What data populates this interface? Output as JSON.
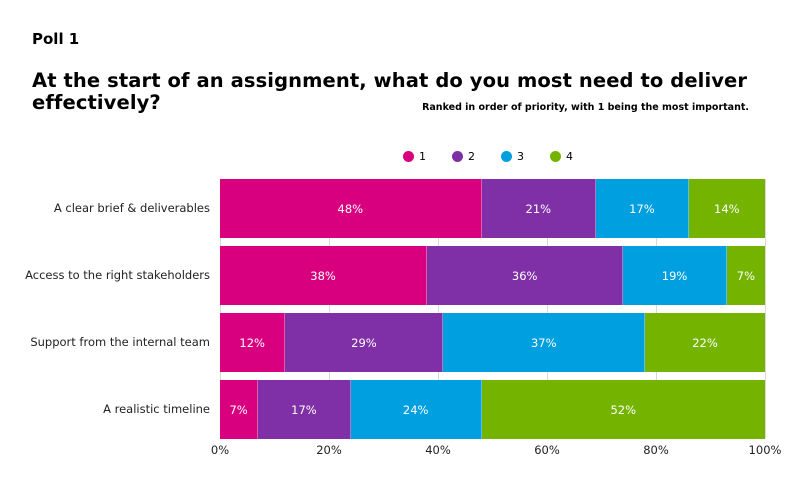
{
  "header": {
    "poll_label": "Poll 1",
    "question": "At the start of an assignment, what do you most need to deliver effectively?",
    "subtitle": "Ranked in order of priority, with 1 being the most important."
  },
  "legend": [
    {
      "label": "1",
      "color": "#d8007e"
    },
    {
      "label": "2",
      "color": "#7f30a6"
    },
    {
      "label": "3",
      "color": "#009fdf"
    },
    {
      "label": "4",
      "color": "#74b300"
    }
  ],
  "x_ticks": [
    "0%",
    "20%",
    "40%",
    "60%",
    "80%",
    "100%"
  ],
  "chart_data": {
    "type": "bar",
    "orientation": "horizontal",
    "stacked": true,
    "normalized_100": true,
    "title": "At the start of an assignment, what do you most need to deliver effectively?",
    "subtitle": "Ranked in order of priority, with 1 being the most important.",
    "categories": [
      "A clear brief & deliverables",
      "Access to the right stakeholders",
      "Support from the internal team",
      "A realistic timeline"
    ],
    "series": [
      {
        "name": "1",
        "color": "#d8007e",
        "values": [
          48,
          38,
          12,
          7
        ]
      },
      {
        "name": "2",
        "color": "#7f30a6",
        "values": [
          21,
          36,
          29,
          17
        ]
      },
      {
        "name": "3",
        "color": "#009fdf",
        "values": [
          17,
          19,
          37,
          24
        ]
      },
      {
        "name": "4",
        "color": "#74b300",
        "values": [
          14,
          7,
          22,
          52
        ]
      }
    ],
    "xlabel": "",
    "ylabel": "",
    "xlim": [
      0,
      100
    ],
    "x_tick_labels": [
      "0%",
      "20%",
      "40%",
      "60%",
      "80%",
      "100%"
    ],
    "grid": "vertical",
    "legend_position": "top",
    "data_labels": true
  },
  "rows": [
    {
      "label": "A clear brief & deliverables",
      "segments": [
        {
          "value": 48,
          "text": "48%",
          "color": "#d8007e"
        },
        {
          "value": 21,
          "text": "21%",
          "color": "#7f30a6"
        },
        {
          "value": 17,
          "text": "17%",
          "color": "#009fdf"
        },
        {
          "value": 14,
          "text": "14%",
          "color": "#74b300"
        }
      ]
    },
    {
      "label": "Access to the right stakeholders",
      "segments": [
        {
          "value": 38,
          "text": "38%",
          "color": "#d8007e"
        },
        {
          "value": 36,
          "text": "36%",
          "color": "#7f30a6"
        },
        {
          "value": 19,
          "text": "19%",
          "color": "#009fdf"
        },
        {
          "value": 7,
          "text": "7%",
          "color": "#74b300"
        }
      ]
    },
    {
      "label": "Support from the internal team",
      "segments": [
        {
          "value": 12,
          "text": "12%",
          "color": "#d8007e"
        },
        {
          "value": 29,
          "text": "29%",
          "color": "#7f30a6"
        },
        {
          "value": 37,
          "text": "37%",
          "color": "#009fdf"
        },
        {
          "value": 22,
          "text": "22%",
          "color": "#74b300"
        }
      ]
    },
    {
      "label": "A realistic timeline",
      "segments": [
        {
          "value": 7,
          "text": "7%",
          "color": "#d8007e"
        },
        {
          "value": 17,
          "text": "17%",
          "color": "#7f30a6"
        },
        {
          "value": 24,
          "text": "24%",
          "color": "#009fdf"
        },
        {
          "value": 52,
          "text": "52%",
          "color": "#74b300"
        }
      ]
    }
  ]
}
